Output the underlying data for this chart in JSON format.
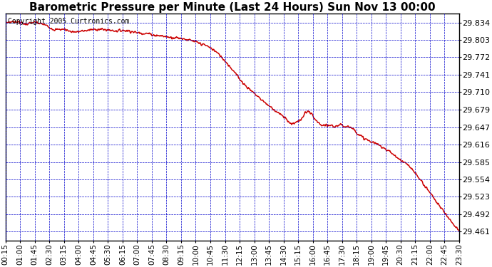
{
  "title": "Barometric Pressure per Minute (Last 24 Hours) Sun Nov 13 00:00",
  "copyright": "Copyright 2005 Curtronics.com",
  "yticks": [
    29.834,
    29.803,
    29.772,
    29.741,
    29.71,
    29.679,
    29.647,
    29.616,
    29.585,
    29.554,
    29.523,
    29.492,
    29.461
  ],
  "ylim": [
    29.445,
    29.85
  ],
  "xtick_labels": [
    "00:15",
    "01:00",
    "01:45",
    "02:30",
    "03:15",
    "04:00",
    "04:45",
    "05:30",
    "06:15",
    "07:00",
    "07:45",
    "08:30",
    "09:15",
    "10:00",
    "10:45",
    "11:30",
    "12:15",
    "13:00",
    "13:45",
    "14:30",
    "15:15",
    "16:00",
    "16:45",
    "17:30",
    "18:15",
    "19:00",
    "19:45",
    "20:30",
    "21:15",
    "22:00",
    "22:45",
    "23:30"
  ],
  "background_color": "#ffffff",
  "grid_color": "#0000cc",
  "line_color": "#cc0000",
  "title_fontsize": 11,
  "copyright_fontsize": 7,
  "ytick_fontsize": 8,
  "xtick_fontsize": 7.5,
  "line_width": 1.1,
  "pressure_keypoints": [
    [
      0,
      29.834
    ],
    [
      30,
      29.836
    ],
    [
      60,
      29.831
    ],
    [
      90,
      29.834
    ],
    [
      120,
      29.83
    ],
    [
      150,
      29.821
    ],
    [
      180,
      29.822
    ],
    [
      200,
      29.818
    ],
    [
      220,
      29.817
    ],
    [
      250,
      29.82
    ],
    [
      280,
      29.822
    ],
    [
      310,
      29.821
    ],
    [
      340,
      29.819
    ],
    [
      360,
      29.82
    ],
    [
      380,
      29.819
    ],
    [
      400,
      29.816
    ],
    [
      420,
      29.815
    ],
    [
      440,
      29.814
    ],
    [
      460,
      29.811
    ],
    [
      480,
      29.81
    ],
    [
      500,
      29.808
    ],
    [
      520,
      29.807
    ],
    [
      540,
      29.806
    ],
    [
      560,
      29.803
    ],
    [
      580,
      29.8
    ],
    [
      600,
      29.796
    ],
    [
      620,
      29.792
    ],
    [
      640,
      29.785
    ],
    [
      660,
      29.775
    ],
    [
      680,
      29.762
    ],
    [
      700,
      29.748
    ],
    [
      720,
      29.733
    ],
    [
      740,
      29.72
    ],
    [
      760,
      29.71
    ],
    [
      780,
      29.7
    ],
    [
      800,
      29.69
    ],
    [
      820,
      29.681
    ],
    [
      840,
      29.672
    ],
    [
      860,
      29.663
    ],
    [
      870,
      29.658
    ],
    [
      875,
      29.655
    ],
    [
      880,
      29.652
    ],
    [
      890,
      29.656
    ],
    [
      900,
      29.658
    ],
    [
      910,
      29.661
    ],
    [
      920,
      29.672
    ],
    [
      930,
      29.676
    ],
    [
      940,
      29.671
    ],
    [
      950,
      29.662
    ],
    [
      960,
      29.655
    ],
    [
      970,
      29.651
    ],
    [
      980,
      29.65
    ],
    [
      990,
      29.649
    ],
    [
      1000,
      29.651
    ],
    [
      1010,
      29.648
    ],
    [
      1020,
      29.65
    ],
    [
      1030,
      29.651
    ],
    [
      1040,
      29.649
    ],
    [
      1050,
      29.65
    ],
    [
      1060,
      29.647
    ],
    [
      1070,
      29.644
    ],
    [
      1080,
      29.638
    ],
    [
      1090,
      29.632
    ],
    [
      1100,
      29.628
    ],
    [
      1110,
      29.625
    ],
    [
      1120,
      29.622
    ],
    [
      1130,
      29.62
    ],
    [
      1150,
      29.615
    ],
    [
      1170,
      29.608
    ],
    [
      1190,
      29.6
    ],
    [
      1210,
      29.59
    ],
    [
      1230,
      29.583
    ],
    [
      1250,
      29.572
    ],
    [
      1270,
      29.558
    ],
    [
      1290,
      29.542
    ],
    [
      1310,
      29.527
    ],
    [
      1330,
      29.51
    ],
    [
      1350,
      29.495
    ],
    [
      1370,
      29.48
    ],
    [
      1390,
      29.466
    ],
    [
      1395,
      29.461
    ]
  ]
}
